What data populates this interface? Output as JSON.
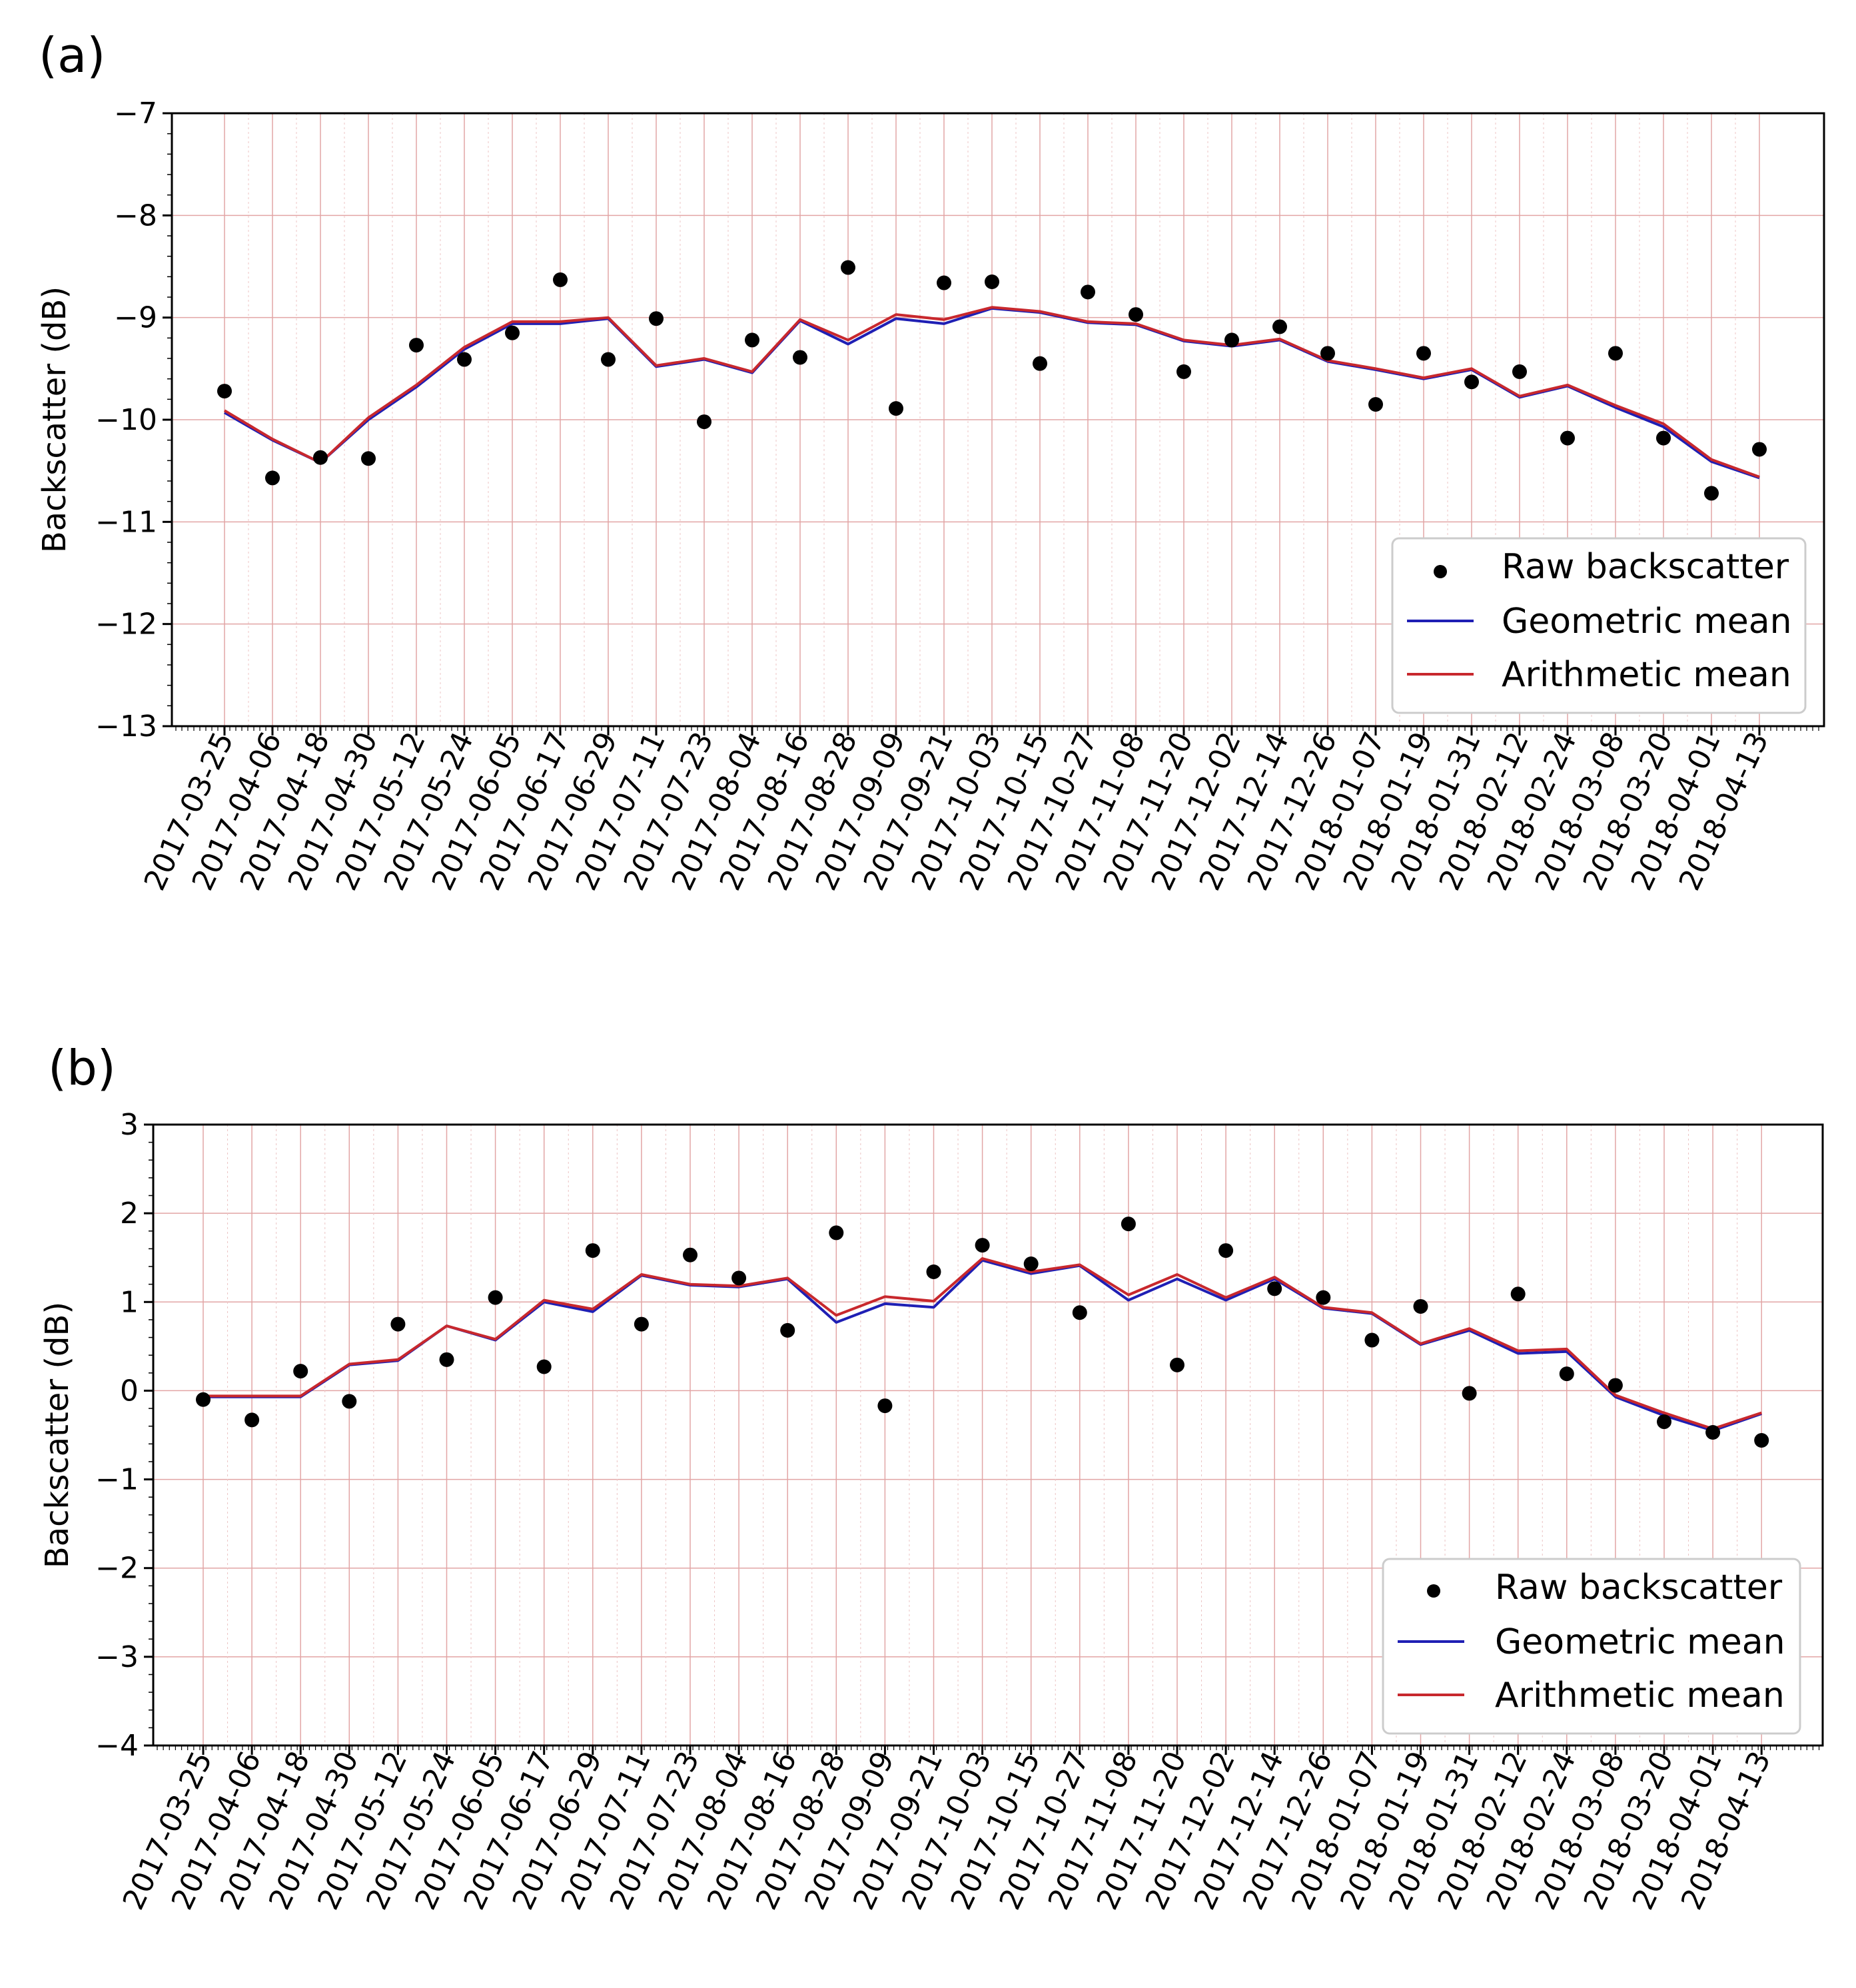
{
  "chart_data": [
    {
      "type": "line",
      "panel_label": "(a)",
      "title": "",
      "xlabel": "",
      "ylabel": "Backscatter (dB)",
      "ylim": [
        -13,
        -7
      ],
      "yticks": [
        -7,
        -8,
        -9,
        -10,
        -11,
        -12,
        -13
      ],
      "ytick_labels": [
        "−7",
        "−8",
        "−9",
        "−10",
        "−11",
        "−12",
        "−13"
      ],
      "grid": true,
      "legend_position": "bottom-right",
      "categories": [
        "2017-03-25",
        "2017-04-06",
        "2017-04-18",
        "2017-04-30",
        "2017-05-12",
        "2017-05-24",
        "2017-06-05",
        "2017-06-17",
        "2017-06-29",
        "2017-07-11",
        "2017-07-23",
        "2017-08-04",
        "2017-08-16",
        "2017-08-28",
        "2017-09-09",
        "2017-09-21",
        "2017-10-03",
        "2017-10-15",
        "2017-10-27",
        "2017-11-08",
        "2017-11-20",
        "2017-12-02",
        "2017-12-14",
        "2017-12-26",
        "2018-01-07",
        "2018-01-19",
        "2018-01-31",
        "2018-02-12",
        "2018-02-24",
        "2018-03-08",
        "2018-03-20",
        "2018-04-01",
        "2018-04-13"
      ],
      "series": [
        {
          "name": "Raw backscatter",
          "kind": "scatter",
          "color": "#000000",
          "values": [
            -9.72,
            -10.57,
            -10.37,
            -10.38,
            -9.27,
            -9.41,
            -9.15,
            -8.63,
            -9.41,
            -9.01,
            -10.02,
            -9.22,
            -9.39,
            -8.51,
            -9.89,
            -8.66,
            -8.65,
            -9.45,
            -8.75,
            -8.97,
            -9.53,
            -9.22,
            -9.09,
            -9.35,
            -9.85,
            -9.35,
            -9.63,
            -9.53,
            -10.18,
            -9.35,
            -10.18,
            -10.72,
            -10.29
          ]
        },
        {
          "name": "Geometric mean",
          "kind": "line",
          "color": "#1f1fb4",
          "values": [
            -9.93,
            -10.2,
            -10.42,
            -10.0,
            -9.68,
            -9.31,
            -9.06,
            -9.06,
            -9.01,
            -9.48,
            -9.41,
            -9.54,
            -9.03,
            -9.26,
            -9.01,
            -9.06,
            -8.91,
            -8.95,
            -9.05,
            -9.07,
            -9.23,
            -9.28,
            -9.22,
            -9.43,
            -9.51,
            -9.6,
            -9.51,
            -9.78,
            -9.67,
            -9.88,
            -10.07,
            -10.41,
            -10.57
          ]
        },
        {
          "name": "Arithmetic mean",
          "kind": "line",
          "color": "#c8282d",
          "values": [
            -9.91,
            -10.19,
            -10.42,
            -9.98,
            -9.66,
            -9.29,
            -9.04,
            -9.04,
            -9.0,
            -9.47,
            -9.4,
            -9.53,
            -9.02,
            -9.22,
            -8.97,
            -9.02,
            -8.9,
            -8.94,
            -9.04,
            -9.06,
            -9.22,
            -9.27,
            -9.21,
            -9.42,
            -9.5,
            -9.59,
            -9.5,
            -9.77,
            -9.66,
            -9.86,
            -10.04,
            -10.39,
            -10.56
          ]
        }
      ]
    },
    {
      "type": "line",
      "panel_label": "(b)",
      "title": "",
      "xlabel": "",
      "ylabel": "Backscatter (dB)",
      "ylim": [
        -4,
        3
      ],
      "yticks": [
        3,
        2,
        1,
        0,
        -1,
        -2,
        -3,
        -4
      ],
      "ytick_labels": [
        "3",
        "2",
        "1",
        "0",
        "−1",
        "−2",
        "−3",
        "−4"
      ],
      "grid": true,
      "legend_position": "bottom-right",
      "categories": [
        "2017-03-25",
        "2017-04-06",
        "2017-04-18",
        "2017-04-30",
        "2017-05-12",
        "2017-05-24",
        "2017-06-05",
        "2017-06-17",
        "2017-06-29",
        "2017-07-11",
        "2017-07-23",
        "2017-08-04",
        "2017-08-16",
        "2017-08-28",
        "2017-09-09",
        "2017-09-21",
        "2017-10-03",
        "2017-10-15",
        "2017-10-27",
        "2017-11-08",
        "2017-11-20",
        "2017-12-02",
        "2017-12-14",
        "2017-12-26",
        "2018-01-07",
        "2018-01-19",
        "2018-01-31",
        "2018-02-12",
        "2018-02-24",
        "2018-03-08",
        "2018-03-20",
        "2018-04-01",
        "2018-04-13"
      ],
      "series": [
        {
          "name": "Raw backscatter",
          "kind": "scatter",
          "color": "#000000",
          "values": [
            -0.1,
            -0.33,
            0.22,
            -0.12,
            0.75,
            0.35,
            1.05,
            0.27,
            1.58,
            0.75,
            1.53,
            1.27,
            0.68,
            1.78,
            -0.17,
            1.34,
            1.64,
            1.43,
            0.88,
            1.88,
            0.29,
            1.58,
            1.15,
            1.05,
            0.57,
            0.95,
            -0.03,
            1.09,
            0.19,
            0.06,
            -0.35,
            -0.47,
            -0.56
          ]
        },
        {
          "name": "Geometric mean",
          "kind": "line",
          "color": "#1f1fb4",
          "values": [
            -0.07,
            -0.07,
            -0.07,
            0.29,
            0.34,
            0.73,
            0.57,
            1.0,
            0.89,
            1.3,
            1.19,
            1.17,
            1.26,
            0.77,
            0.98,
            0.94,
            1.47,
            1.32,
            1.41,
            1.02,
            1.26,
            1.02,
            1.26,
            0.93,
            0.87,
            0.52,
            0.68,
            0.42,
            0.44,
            -0.07,
            -0.28,
            -0.45,
            -0.26
          ]
        },
        {
          "name": "Arithmetic mean",
          "kind": "line",
          "color": "#c8282d",
          "values": [
            -0.06,
            -0.06,
            -0.06,
            0.3,
            0.35,
            0.73,
            0.58,
            1.02,
            0.92,
            1.31,
            1.2,
            1.18,
            1.27,
            0.85,
            1.06,
            1.01,
            1.49,
            1.34,
            1.42,
            1.08,
            1.31,
            1.05,
            1.28,
            0.94,
            0.88,
            0.53,
            0.7,
            0.45,
            0.47,
            -0.05,
            -0.25,
            -0.43,
            -0.25
          ]
        }
      ]
    }
  ]
}
